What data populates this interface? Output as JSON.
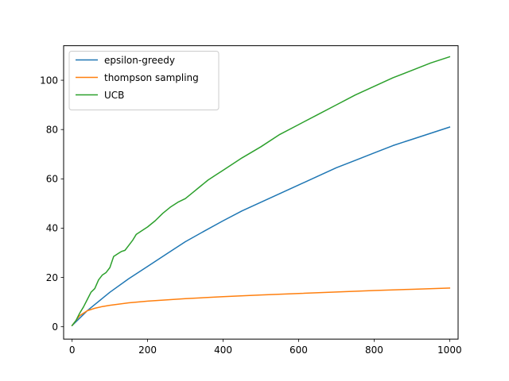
{
  "chart_data": {
    "type": "line",
    "title": "",
    "xlabel": "",
    "ylabel": "",
    "xlim": [
      -22.5,
      1022.5
    ],
    "ylim": [
      -5.0,
      114.0
    ],
    "xticks": [
      0,
      200,
      400,
      600,
      800,
      1000
    ],
    "yticks": [
      0,
      20,
      40,
      60,
      80,
      100
    ],
    "grid": false,
    "legend_position": "top-left",
    "series": [
      {
        "name": "epsilon-greedy",
        "color": "#1f77b4",
        "x": [
          0,
          20,
          40,
          60,
          80,
          100,
          150,
          200,
          250,
          300,
          350,
          400,
          450,
          500,
          550,
          600,
          650,
          700,
          750,
          800,
          850,
          900,
          950,
          1000
        ],
        "y": [
          0.5,
          3.5,
          6.5,
          9.0,
          11.5,
          14.0,
          19.5,
          24.5,
          29.5,
          34.5,
          38.8,
          43.0,
          47.0,
          50.5,
          54.0,
          57.5,
          61.0,
          64.5,
          67.5,
          70.5,
          73.5,
          76.0,
          78.5,
          81.0
        ]
      },
      {
        "name": "thompson sampling",
        "color": "#ff7f0e",
        "x": [
          0,
          20,
          40,
          60,
          80,
          100,
          150,
          200,
          300,
          400,
          500,
          600,
          700,
          800,
          900,
          1000
        ],
        "y": [
          0.5,
          4.5,
          6.5,
          7.5,
          8.2,
          8.7,
          9.7,
          10.4,
          11.4,
          12.2,
          12.9,
          13.5,
          14.1,
          14.7,
          15.2,
          15.7
        ]
      },
      {
        "name": "UCB",
        "color": "#2ca02c",
        "x": [
          0,
          10,
          20,
          30,
          40,
          50,
          60,
          70,
          80,
          90,
          100,
          110,
          120,
          130,
          140,
          150,
          160,
          170,
          180,
          190,
          200,
          220,
          240,
          260,
          280,
          300,
          320,
          340,
          360,
          380,
          400,
          450,
          500,
          550,
          600,
          650,
          700,
          750,
          800,
          850,
          900,
          950,
          1000
        ],
        "y": [
          0.5,
          2.5,
          5.5,
          8.0,
          11.0,
          14.0,
          15.5,
          19.0,
          21.0,
          22.0,
          24.0,
          28.5,
          29.5,
          30.5,
          31.0,
          33.0,
          35.0,
          37.5,
          38.5,
          39.5,
          40.5,
          43.0,
          46.0,
          48.5,
          50.5,
          52.0,
          54.5,
          57.0,
          59.5,
          61.5,
          63.5,
          68.5,
          73.0,
          78.0,
          82.0,
          86.0,
          90.0,
          94.0,
          97.5,
          101.0,
          104.0,
          107.0,
          109.5
        ]
      }
    ]
  }
}
